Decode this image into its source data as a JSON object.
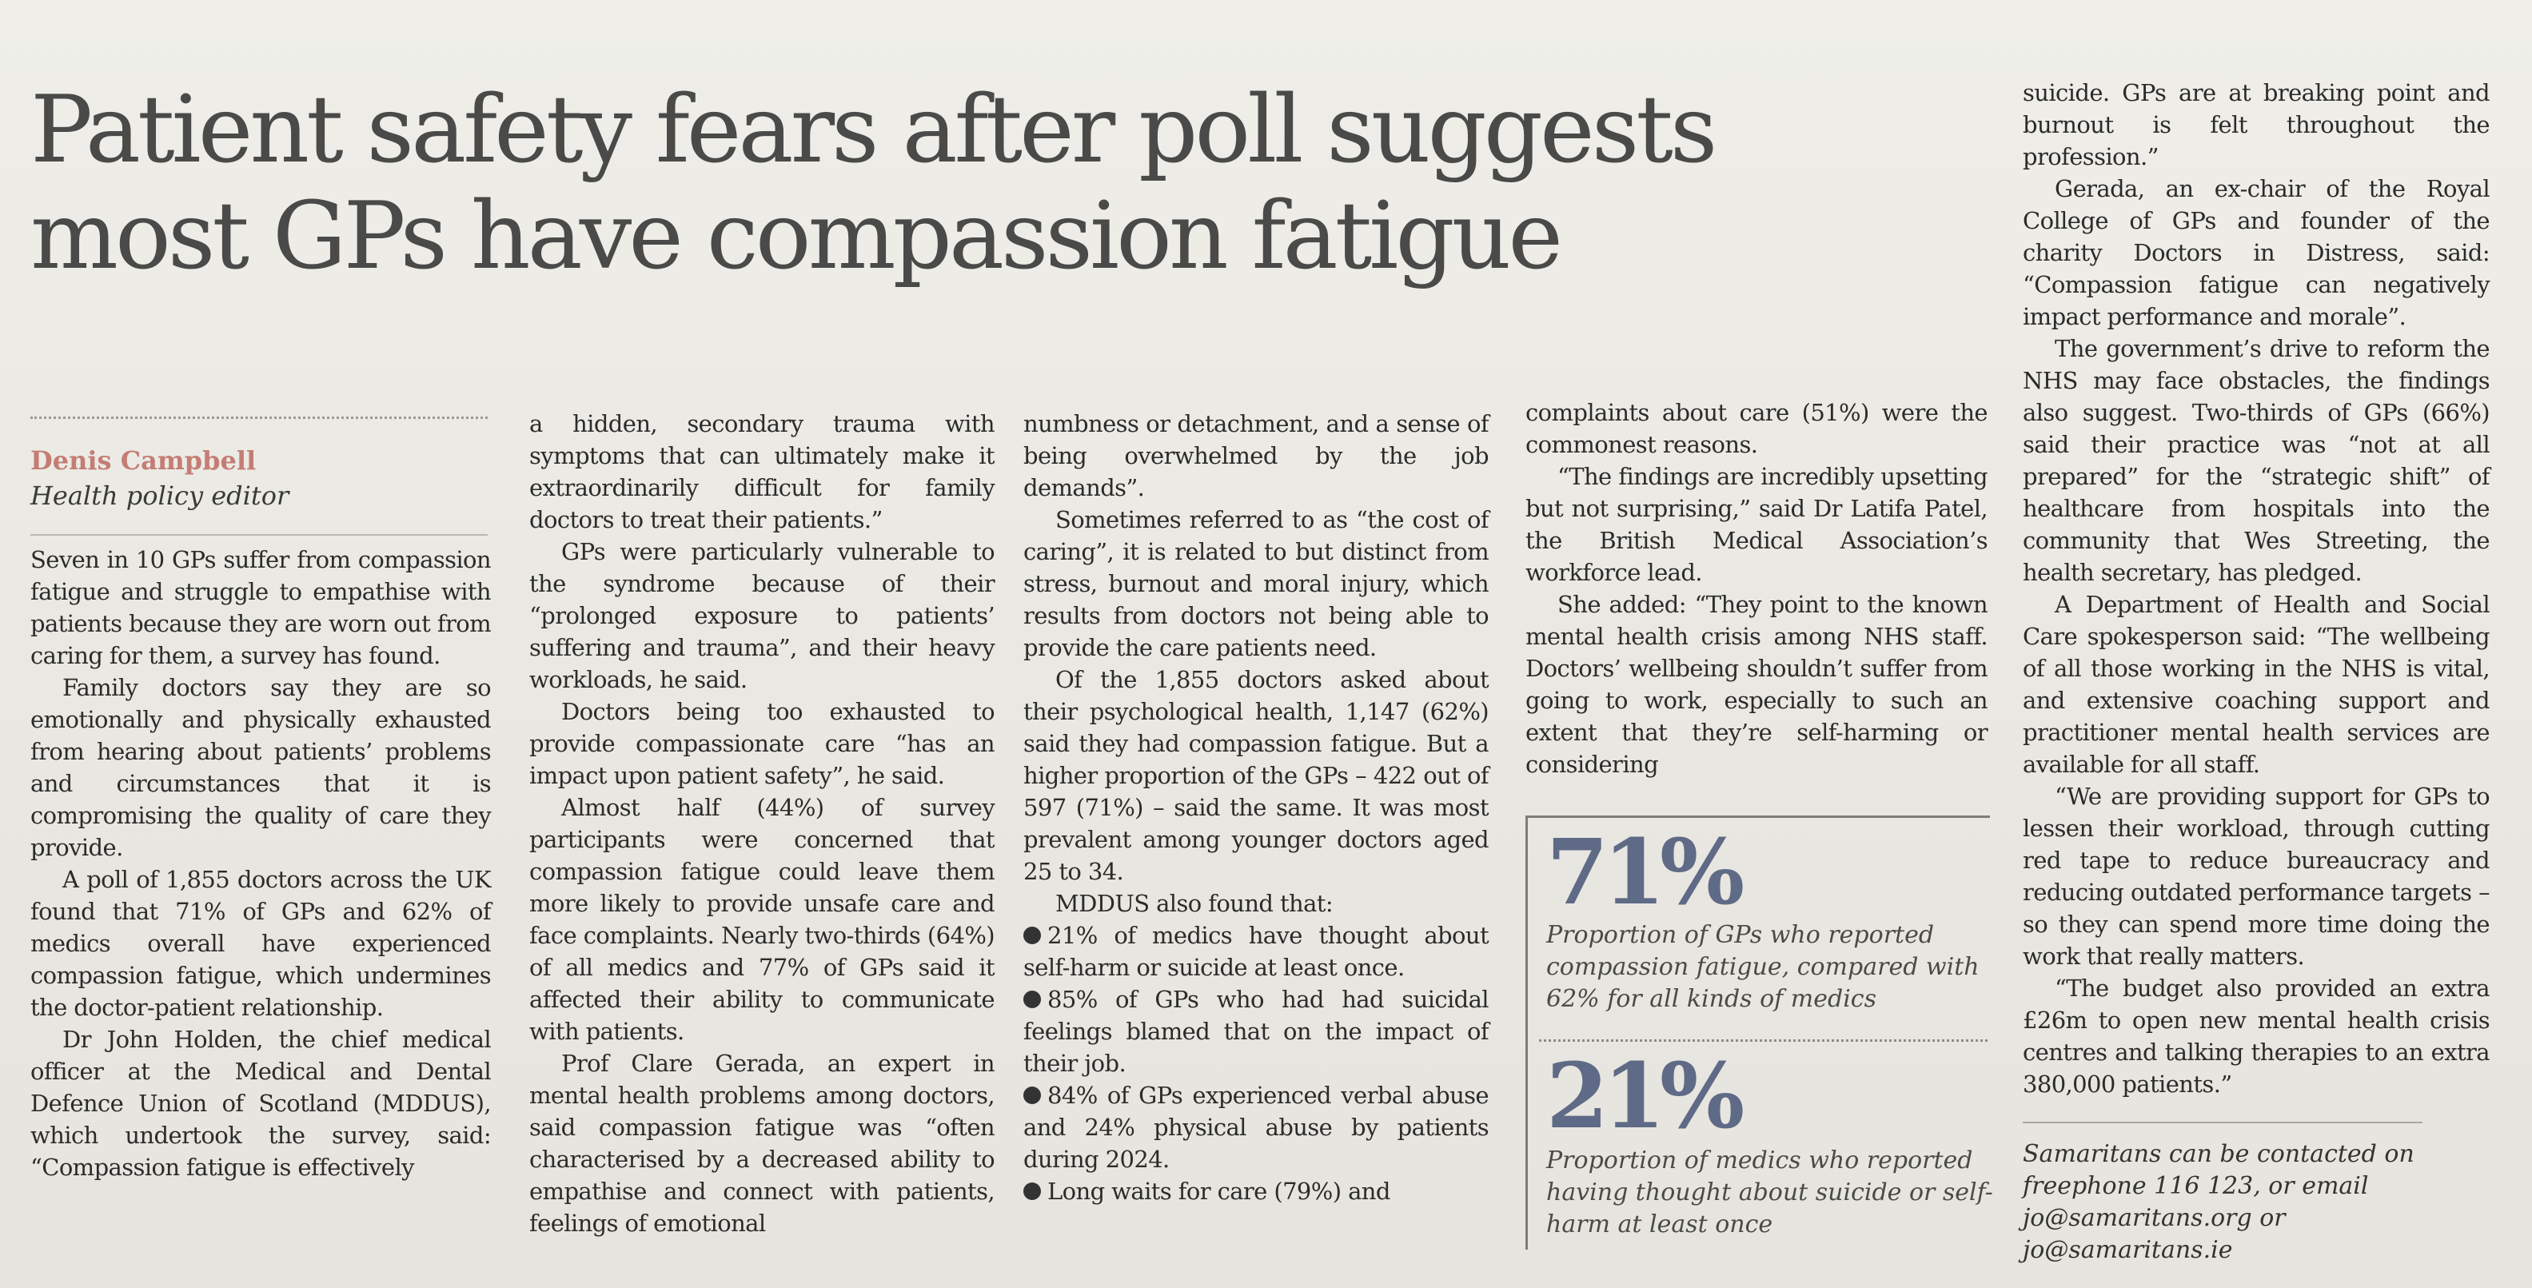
{
  "headline": {
    "line1": "Patient safety fears after poll suggests",
    "line2": "most GPs have compassion fatigue"
  },
  "byline": {
    "author": "Denis Campbell",
    "role": "Health policy editor"
  },
  "columns": {
    "col1": [
      "Seven in 10 GPs suffer from compassion fatigue and struggle to empathise with patients because they are worn out from caring for them, a survey has found.",
      "Family doctors say they are so emotionally and physically exhausted from hearing about patients’ problems and circumstances that it is compromising the quality of care they provide.",
      "A poll of 1,855 doctors across the UK found that 71% of GPs and 62% of medics overall have experienced compassion fatigue, which undermines the doctor-patient relationship.",
      "Dr John Holden, the chief medical officer at the Medical and Dental Defence Union of Scotland (MDDUS), which undertook the survey, said: “Compassion fatigue is effectively"
    ],
    "col2": [
      "a hidden, secondary trauma with symptoms that can ultimately make it extraordinarily difficult for family doctors to treat their patients.”",
      "GPs were particularly vulnerable to the syndrome because of their “prolonged exposure to patients’ suffering and trauma”, and their heavy workloads, he said.",
      "Doctors being too exhausted to provide compassionate care “has an impact upon patient safety”, he said.",
      "Almost half (44%) of survey participants were concerned that compassion fatigue could leave them more likely to provide unsafe care and face complaints. Nearly two-thirds (64%) of all medics and 77% of GPs said it affected their ability to communicate with patients.",
      "Prof Clare Gerada, an expert in mental health problems among doctors, said compassion fatigue was “often characterised by a decreased ability to empathise and connect with patients, feelings of emotional"
    ],
    "col3": [
      "numbness or detachment, and a sense of being overwhelmed by the job demands”.",
      "Sometimes referred to as “the cost of caring”, it is related to but distinct from stress, burnout and moral injury, which results from doctors not being able to provide the care patients need.",
      "Of the 1,855 doctors asked about their psychological health, 1,147 (62%) said they had compassion fatigue. But a higher proportion of the GPs – 422 out of 597 (71%) – said the same. It was most prevalent among younger doctors aged 25 to 34.",
      "MDDUS also found that:",
      "21% of medics have thought about self-harm or suicide at least once.",
      "85% of GPs who had had suicidal feelings blamed that on the impact of their job.",
      "84% of GPs experienced verbal abuse and 24% physical abuse by patients during 2024.",
      "Long waits for care (79%) and"
    ],
    "col4": [
      "complaints about care (51%) were the commonest reasons.",
      "“The findings are incredibly upsetting but not surprising,” said Dr Latifa Patel, the British Medical Association’s workforce lead.",
      "She added: “They point to the known mental health crisis among NHS staff. Doctors’ wellbeing shouldn’t suffer from going to work, especially to such an extent that they’re self-harming or considering"
    ],
    "col5": [
      "suicide. GPs are at breaking point and burnout is felt throughout the profession.”",
      "Gerada, an ex-chair of the Royal College of GPs and founder of the charity Doctors in Distress, said: “Compassion fatigue can negatively impact performance and morale”.",
      "The government’s drive to reform the NHS may face obstacles, the findings also suggest. Two-thirds of GPs (66%) said their practice was “not at all prepared” for the “strategic shift” of healthcare from hospitals into the community that Wes Streeting, the health secretary, has pledged.",
      "A Department of Health and Social Care spokesperson said: “The wellbeing of all those working in the NHS is vital, and extensive coaching support and practitioner mental health services are available for all staff.",
      "“We are providing support for GPs to lessen their workload, through cutting red tape to reduce bureaucracy and reducing outdated performance targets – so they can spend more time doing the work that really matters.",
      "“The budget also provided an extra £26m to open new mental health crisis centres and talking therapies to an extra 380,000 patients.”"
    ]
  },
  "stats": [
    {
      "value": "71%",
      "caption": "Proportion of GPs who reported compassion fatigue, compared with 62% for all kinds of medics"
    },
    {
      "value": "21%",
      "caption": "Proportion of medics who reported having thought about suicide or self-harm at least once"
    }
  ],
  "footnote": "Samaritans can be contacted on freephone 116 123, or email jo@samaritans.org or jo@samaritans.ie"
}
